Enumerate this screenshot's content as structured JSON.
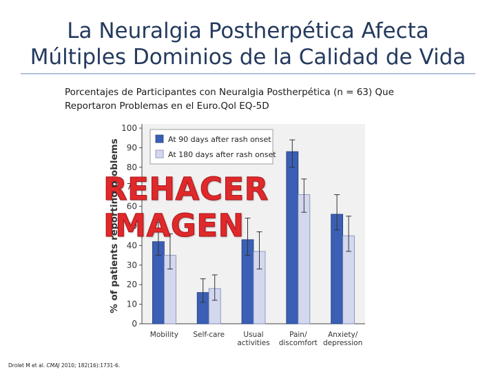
{
  "slide": {
    "title_line1": "La Neuralgia Postherpética Afecta",
    "title_line2": "Múltiples Dominios de la Calidad de Vida",
    "subtitle_line1": "Porcentajes de Participantes con Neuralgia Postherpética (n = 63) Que",
    "subtitle_line2": "Reportaron Problemas en el Euro.Qol EQ-5D",
    "overlay_stamp": "REHACER IMAGEN",
    "citation_authors": "Drolet M et al. ",
    "citation_journal": "CMAJ",
    "citation_rest": " 2010; 182(16):1731-6."
  },
  "colors": {
    "title": "#243a5e",
    "series_90": "#3a5fb4",
    "series_180": "#d3d8ef",
    "plot_bg": "#f1f1f1",
    "overlay": "#e0292b"
  },
  "chart_data": {
    "type": "bar",
    "ylabel": "% of patients reporting problems",
    "ylim": [
      0,
      100
    ],
    "yticks": [
      0,
      10,
      20,
      30,
      40,
      50,
      60,
      70,
      80,
      90,
      100
    ],
    "grid": false,
    "legend_position": "top-left",
    "categories": [
      [
        "Mobility"
      ],
      [
        "Self-care"
      ],
      [
        "Usual",
        "activities"
      ],
      [
        "Pain/",
        "discomfort"
      ],
      [
        "Anxiety/",
        "depression"
      ]
    ],
    "series": [
      {
        "name": "At 90 days after rash onset",
        "values": [
          42,
          16,
          43,
          88,
          56
        ],
        "err_low": [
          35,
          11,
          35,
          80,
          48
        ],
        "err_high": [
          52,
          23,
          54,
          94,
          66
        ]
      },
      {
        "name": "At 180 days after rash onset",
        "values": [
          35,
          18,
          37,
          66,
          45
        ],
        "err_low": [
          28,
          12,
          28,
          57,
          37
        ],
        "err_high": [
          46,
          25,
          47,
          74,
          55
        ]
      }
    ]
  }
}
